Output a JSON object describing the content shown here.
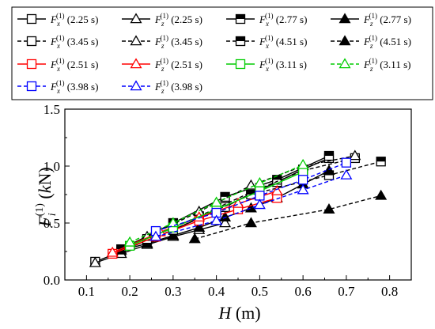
{
  "chart_data": {
    "type": "line",
    "xlabel": "H (m)",
    "ylabel": "F_i^(1) (kN)",
    "xlim": [
      0.05,
      0.85
    ],
    "ylim": [
      0.0,
      1.5
    ],
    "x_ticks": [
      "0.1",
      "0.2",
      "0.3",
      "0.4",
      "0.5",
      "0.6",
      "0.7",
      "0.8"
    ],
    "y_ticks": [
      "0.0",
      "0.5",
      "1.0",
      "1.5"
    ],
    "x_tick_values": [
      0.1,
      0.2,
      0.3,
      0.4,
      0.5,
      0.6,
      0.7,
      0.8
    ],
    "y_tick_values": [
      0.0,
      0.5,
      1.0,
      1.5
    ],
    "grid": false,
    "legend_placement": "top",
    "series": [
      {
        "legend": "F_x^(1) (2.25 s)",
        "symbol": "F",
        "comp": "x",
        "time": "(2.25 s)",
        "color": "#000000",
        "marker": "square",
        "fill": "open",
        "dash": "solid",
        "points": [
          [
            0.12,
            0.16
          ],
          [
            0.18,
            0.25
          ],
          [
            0.24,
            0.35
          ],
          [
            0.3,
            0.44
          ],
          [
            0.36,
            0.54
          ],
          [
            0.42,
            0.64
          ],
          [
            0.48,
            0.76
          ],
          [
            0.54,
            0.86
          ],
          [
            0.6,
            0.97
          ],
          [
            0.66,
            1.07
          ]
        ]
      },
      {
        "legend": "F_z^(1) (2.25 s)",
        "symbol": "F",
        "comp": "z",
        "time": "(2.25 s)",
        "color": "#000000",
        "marker": "triangle",
        "fill": "open",
        "dash": "solid",
        "points": [
          [
            0.12,
            0.15
          ],
          [
            0.18,
            0.23
          ],
          [
            0.24,
            0.31
          ],
          [
            0.3,
            0.38
          ],
          [
            0.36,
            0.44
          ],
          [
            0.42,
            0.5
          ]
        ]
      },
      {
        "legend": "F_x^(1) (2.77 s)",
        "symbol": "F",
        "comp": "x",
        "time": "(2.77 s)",
        "color": "#000000",
        "marker": "square",
        "fill": "half",
        "dash": "solid",
        "points": [
          [
            0.18,
            0.27
          ],
          [
            0.3,
            0.5
          ],
          [
            0.42,
            0.73
          ],
          [
            0.54,
            0.88
          ],
          [
            0.66,
            1.09
          ]
        ]
      },
      {
        "legend": "F_z^(1) (2.77 s)",
        "symbol": "F",
        "comp": "z",
        "time": "(2.77 s)",
        "color": "#000000",
        "marker": "triangle",
        "fill": "filled",
        "dash": "solid",
        "points": [
          [
            0.18,
            0.26
          ],
          [
            0.24,
            0.32
          ],
          [
            0.3,
            0.39
          ],
          [
            0.36,
            0.46
          ],
          [
            0.42,
            0.55
          ],
          [
            0.48,
            0.63
          ],
          [
            0.54,
            0.72
          ],
          [
            0.6,
            0.84
          ],
          [
            0.66,
            0.96
          ]
        ]
      },
      {
        "legend": "F_x^(1) (3.45 s)",
        "symbol": "F",
        "comp": "x",
        "time": "(3.45 s)",
        "color": "#000000",
        "marker": "square",
        "fill": "open",
        "dash": "dash",
        "points": [
          [
            0.24,
            0.36
          ],
          [
            0.36,
            0.56
          ],
          [
            0.48,
            0.77
          ],
          [
            0.6,
            0.96
          ],
          [
            0.72,
            1.07
          ]
        ]
      },
      {
        "legend": "F_z^(1) (3.45 s)",
        "symbol": "F",
        "comp": "z",
        "time": "(3.45 s)",
        "color": "#000000",
        "marker": "triangle",
        "fill": "open",
        "dash": "dash",
        "points": [
          [
            0.24,
            0.38
          ],
          [
            0.36,
            0.6
          ],
          [
            0.48,
            0.83
          ],
          [
            0.6,
            1.0
          ],
          [
            0.72,
            1.09
          ]
        ]
      },
      {
        "legend": "F_x^(1) (4.51 s)",
        "symbol": "F",
        "comp": "x",
        "time": "(4.51 s)",
        "color": "#000000",
        "marker": "square",
        "fill": "half",
        "dash": "dash",
        "points": [
          [
            0.3,
            0.44
          ],
          [
            0.48,
            0.75
          ],
          [
            0.66,
            0.92
          ],
          [
            0.78,
            1.04
          ]
        ]
      },
      {
        "legend": "F_z^(1) (4.51 s)",
        "symbol": "F",
        "comp": "z",
        "time": "(4.51 s)",
        "color": "#000000",
        "marker": "triangle",
        "fill": "filled",
        "dash": "dash",
        "points": [
          [
            0.35,
            0.36
          ],
          [
            0.48,
            0.5
          ],
          [
            0.66,
            0.62
          ],
          [
            0.78,
            0.74
          ]
        ]
      },
      {
        "legend": "F_x^(1) (2.51 s)",
        "symbol": "F",
        "comp": "x",
        "time": "(2.51 s)",
        "color": "#ff0000",
        "marker": "square",
        "fill": "open",
        "dash": "solid",
        "points": [
          [
            0.16,
            0.23
          ],
          [
            0.26,
            0.38
          ],
          [
            0.36,
            0.52
          ],
          [
            0.45,
            0.62
          ],
          [
            0.54,
            0.72
          ]
        ]
      },
      {
        "legend": "F_z^(1) (2.51 s)",
        "symbol": "F",
        "comp": "z",
        "time": "(2.51 s)",
        "color": "#ff0000",
        "marker": "triangle",
        "fill": "open",
        "dash": "solid",
        "points": [
          [
            0.16,
            0.24
          ],
          [
            0.27,
            0.42
          ],
          [
            0.36,
            0.55
          ],
          [
            0.45,
            0.67
          ],
          [
            0.54,
            0.78
          ]
        ]
      },
      {
        "legend": "F_x^(1) (3.11 s)",
        "symbol": "F",
        "comp": "x",
        "time": "(3.11 s)",
        "color": "#00cc00",
        "marker": "square",
        "fill": "open",
        "dash": "solid",
        "points": [
          [
            0.2,
            0.3
          ],
          [
            0.3,
            0.46
          ],
          [
            0.4,
            0.62
          ],
          [
            0.5,
            0.78
          ],
          [
            0.6,
            0.95
          ]
        ]
      },
      {
        "legend": "F_z^(1) (3.11 s)",
        "symbol": "F",
        "comp": "z",
        "time": "(3.11 s)",
        "color": "#00cc00",
        "marker": "triangle",
        "fill": "open",
        "dash": "dash",
        "points": [
          [
            0.2,
            0.33
          ],
          [
            0.3,
            0.5
          ],
          [
            0.4,
            0.68
          ],
          [
            0.5,
            0.85
          ],
          [
            0.6,
            1.01
          ]
        ]
      },
      {
        "legend": "F_x^(1) (3.98 s)",
        "symbol": "F",
        "comp": "x",
        "time": "(3.98 s)",
        "color": "#0000ff",
        "marker": "square",
        "fill": "open",
        "dash": "dash",
        "points": [
          [
            0.26,
            0.43
          ],
          [
            0.4,
            0.59
          ],
          [
            0.5,
            0.74
          ],
          [
            0.6,
            0.88
          ],
          [
            0.7,
            1.03
          ]
        ]
      },
      {
        "legend": "F_z^(1) (3.98 s)",
        "symbol": "F",
        "comp": "z",
        "time": "(3.98 s)",
        "color": "#0000ff",
        "marker": "triangle",
        "fill": "open",
        "dash": "dash",
        "points": [
          [
            0.26,
            0.38
          ],
          [
            0.4,
            0.52
          ],
          [
            0.5,
            0.66
          ],
          [
            0.6,
            0.79
          ],
          [
            0.7,
            0.92
          ]
        ]
      }
    ]
  }
}
